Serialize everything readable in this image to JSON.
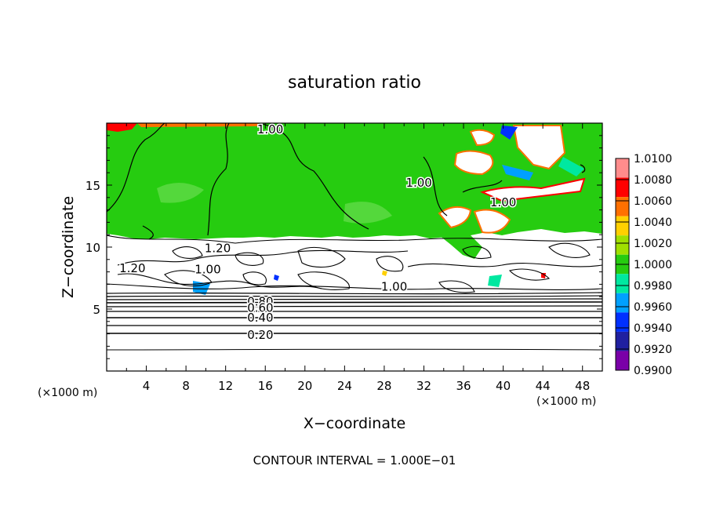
{
  "chart_data": {
    "type": "heatmap",
    "title": "saturation ratio",
    "xlabel": "X−coordinate",
    "ylabel": "Z−coordinate",
    "x_unit": "(×1000 m)",
    "z_unit": "(×1000 m)",
    "footer": "CONTOUR INTERVAL = 1.000E−01",
    "xlim": [
      0,
      50
    ],
    "ylim": [
      0,
      20
    ],
    "x_ticks": [
      4,
      8,
      12,
      16,
      20,
      24,
      28,
      32,
      36,
      40,
      44,
      48
    ],
    "y_ticks": [
      5,
      10,
      15
    ],
    "colorbar": {
      "levels": [
        "1.0100",
        "1.0080",
        "1.0060",
        "1.0040",
        "1.0020",
        "1.0000",
        "0.9980",
        "0.9960",
        "0.9940",
        "0.9920",
        "0.9900"
      ],
      "colors": [
        "#ff8c8c",
        "#ff0000",
        "#ff7000",
        "#ffd000",
        "#a0e000",
        "#26cc10",
        "#00e8a0",
        "#00a0ff",
        "#0030ff",
        "#2020a0",
        "#7a00a8"
      ]
    },
    "contour_labels": [
      {
        "text": "1.00",
        "x": 16.5,
        "z": 19.5
      },
      {
        "text": "1.00",
        "x": 31.5,
        "z": 15.2
      },
      {
        "text": "1.00",
        "x": 40.0,
        "z": 13.6
      },
      {
        "text": "1.20",
        "x": 11.2,
        "z": 9.9
      },
      {
        "text": "1.20",
        "x": 2.6,
        "z": 8.3
      },
      {
        "text": "1.00",
        "x": 10.2,
        "z": 8.2
      },
      {
        "text": "1.00",
        "x": 29.0,
        "z": 6.8
      },
      {
        "text": "0.80",
        "x": 15.5,
        "z": 5.6
      },
      {
        "text": "0.60",
        "x": 15.5,
        "z": 5.1
      },
      {
        "text": "0.40",
        "x": 15.5,
        "z": 4.3
      },
      {
        "text": "0.20",
        "x": 15.5,
        "z": 2.9
      }
    ]
  }
}
